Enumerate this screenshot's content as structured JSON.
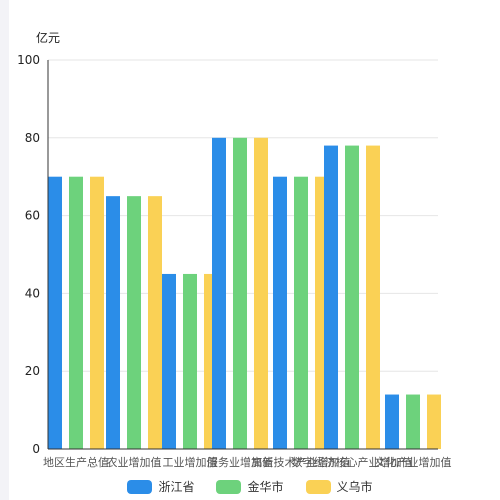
{
  "chart_data": {
    "type": "bar",
    "unit_label": "亿元",
    "categories": [
      "地区生产总值",
      "农业增加值",
      "工业增加值",
      "服务业增加值",
      "高新技术产业增加值",
      "数字经济核心产业增加值",
      "文化产业增加值"
    ],
    "series": [
      {
        "name": "浙江省",
        "color": "#2b8de8",
        "values": [
          70,
          65,
          45,
          80,
          70,
          78,
          14
        ]
      },
      {
        "name": "金华市",
        "color": "#6dd27c",
        "values": [
          70,
          65,
          45,
          80,
          70,
          78,
          14
        ]
      },
      {
        "name": "义乌市",
        "color": "#fad155",
        "values": [
          70,
          65,
          45,
          80,
          70,
          78,
          14
        ]
      }
    ],
    "ylim": [
      0,
      100
    ],
    "yticks": [
      0,
      20,
      40,
      60,
      80,
      100
    ],
    "grid": true,
    "legend_position": "bottom-center"
  }
}
